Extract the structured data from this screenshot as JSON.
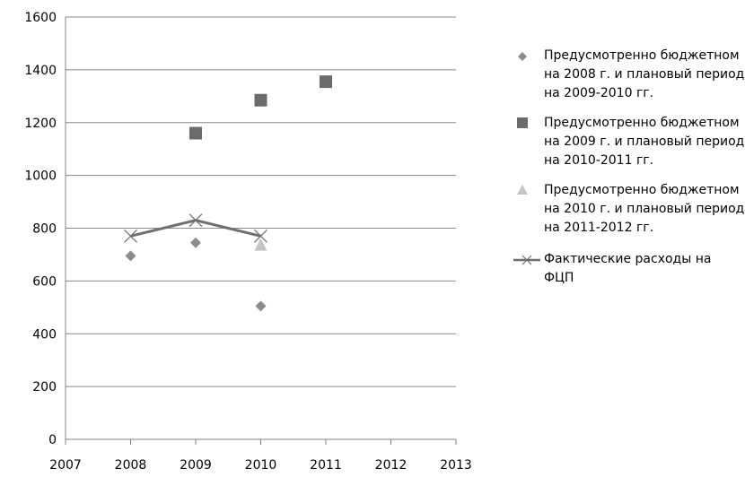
{
  "chart_data": {
    "type": "scatter",
    "x_ticks": [
      "2007",
      "2008",
      "2009",
      "2010",
      "2011",
      "2012",
      "2013"
    ],
    "y_ticks": [
      "0",
      "200",
      "400",
      "600",
      "800",
      "1000",
      "1200",
      "1400",
      "1600"
    ],
    "xlim": [
      2007,
      2013
    ],
    "ylim": [
      0,
      1600
    ],
    "grid": "horizontal",
    "legend_position": "right",
    "series": [
      {
        "name": "Предусмотренно бюджетном на 2008 г. и плановый период на 2009-2010 гг.",
        "marker": "diamond",
        "color": "#8c8c8c",
        "points": [
          {
            "x": 2008,
            "y": 695
          },
          {
            "x": 2009,
            "y": 745
          },
          {
            "x": 2010,
            "y": 505
          }
        ]
      },
      {
        "name": "Предусмотренно бюджетном на 2009 г. и плановый период на 2010-2011 гг.",
        "marker": "square",
        "color": "#6b6b6b",
        "points": [
          {
            "x": 2009,
            "y": 1160
          },
          {
            "x": 2010,
            "y": 1285
          },
          {
            "x": 2011,
            "y": 1355
          }
        ]
      },
      {
        "name": "Предусмотренно бюджетном на 2010 г. и плановый период на 2011-2012 гг.",
        "marker": "triangle",
        "color": "#c4c4c4",
        "points": [
          {
            "x": 2010,
            "y": 735
          }
        ]
      },
      {
        "name": "Фактические расходы на ФЦП",
        "marker": "x-line",
        "color": "#6f6f6f",
        "points": [
          {
            "x": 2008,
            "y": 770
          },
          {
            "x": 2009,
            "y": 830
          },
          {
            "x": 2010,
            "y": 770
          }
        ]
      }
    ]
  }
}
